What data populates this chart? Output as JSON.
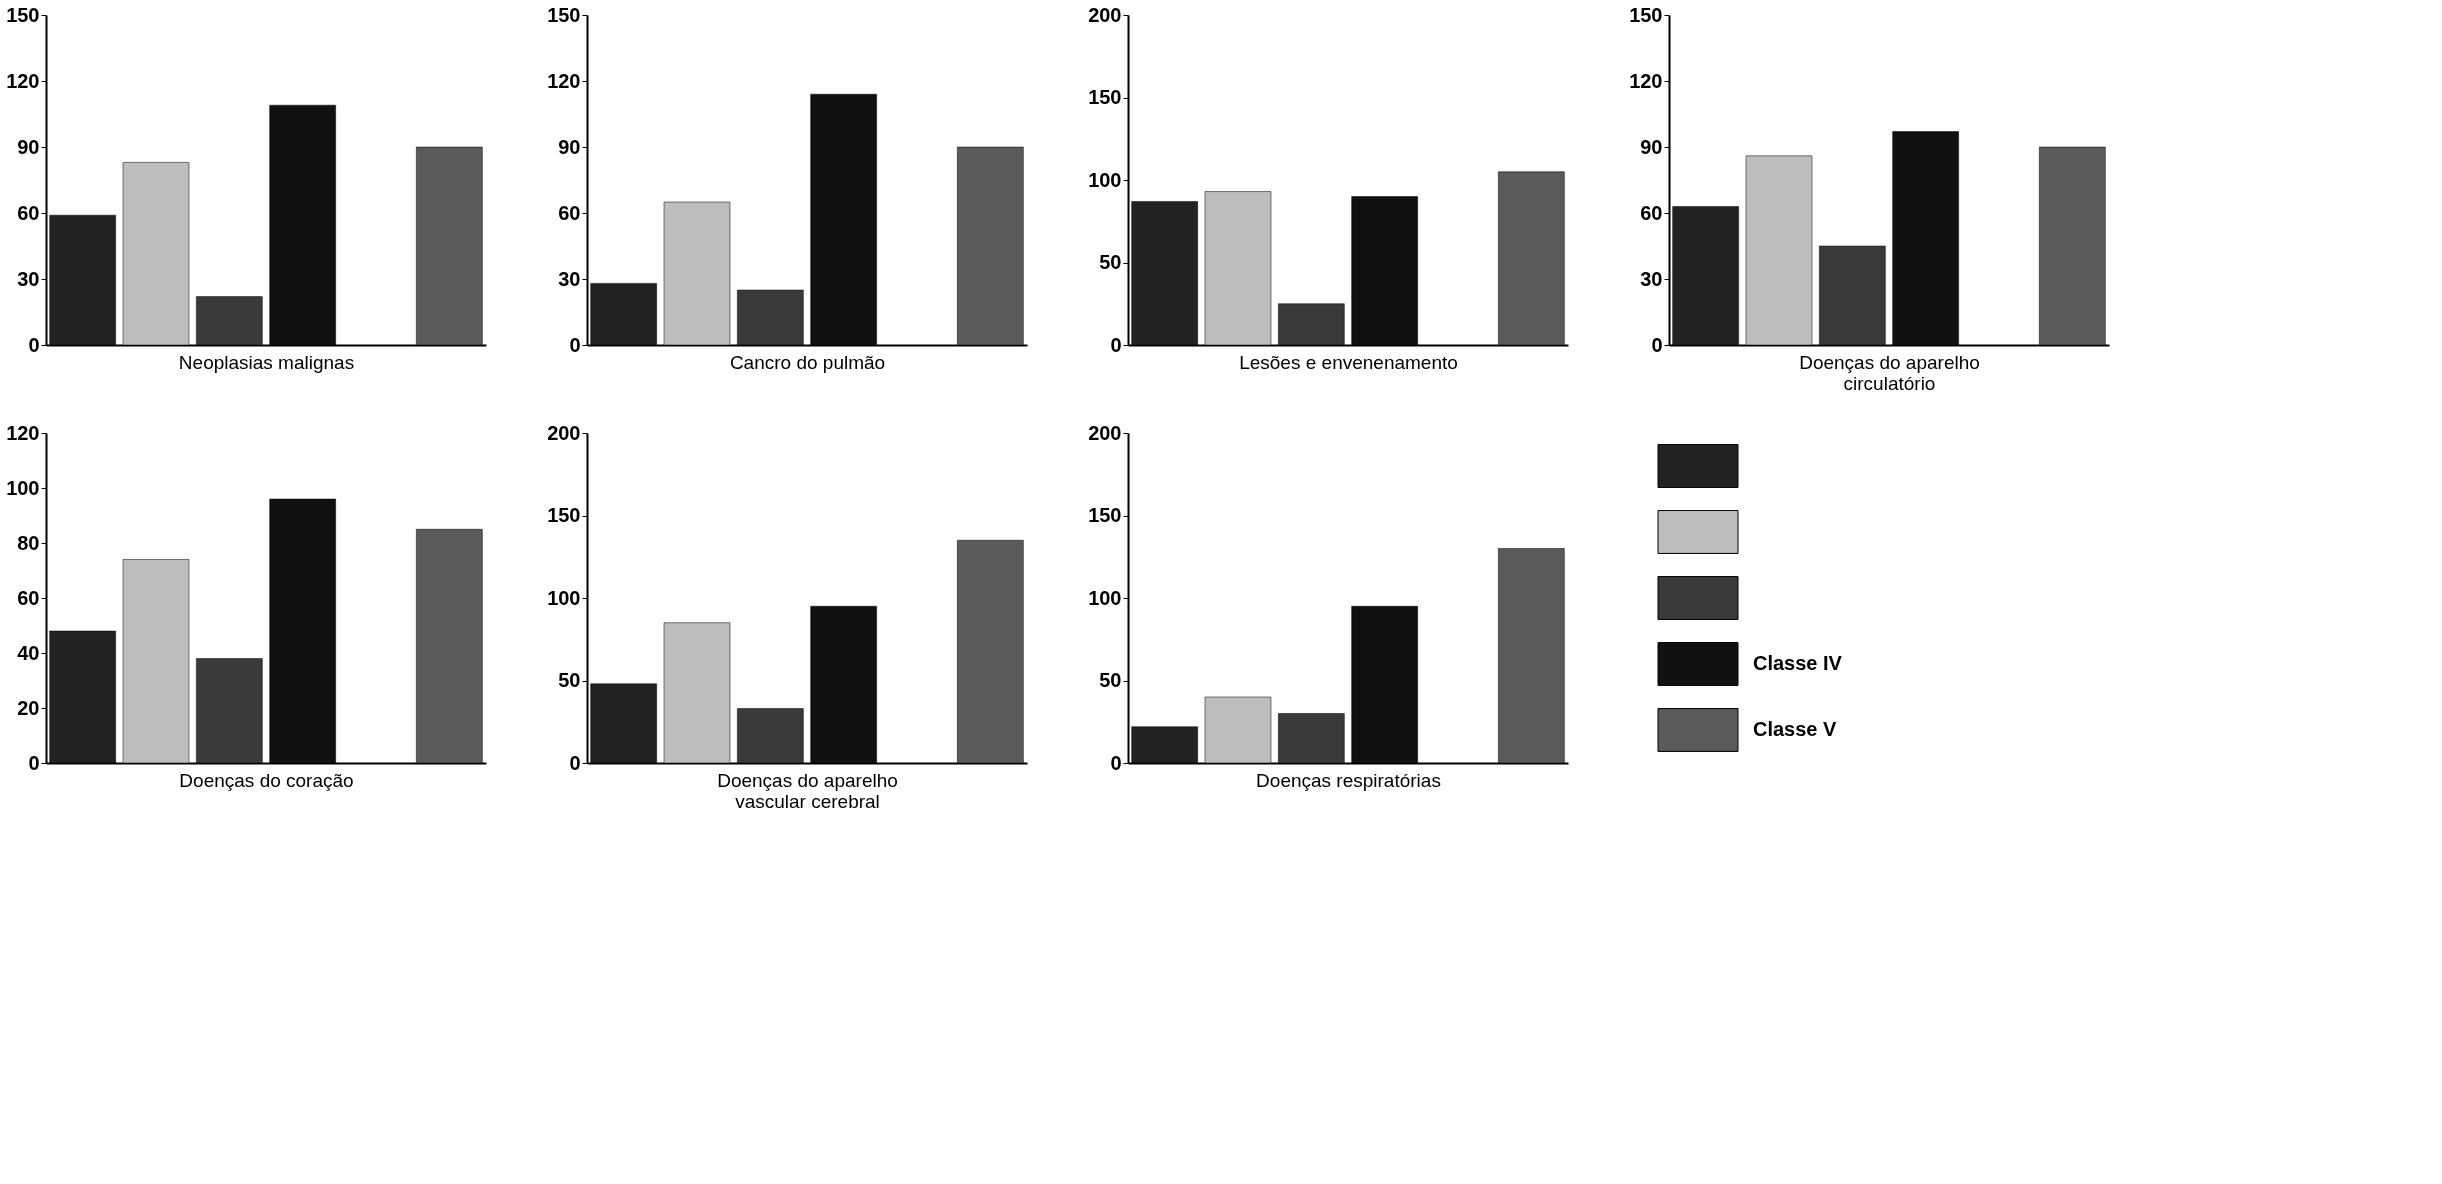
{
  "chart_data": [
    {
      "type": "bar",
      "xlabel": "Neoplasias malignas",
      "categories": [
        null,
        null,
        null,
        null,
        null,
        null
      ],
      "values": [
        59,
        83,
        22,
        109,
        null,
        90
      ],
      "colors": [
        "#222222",
        "#bdbdbd",
        "#3a3a3a",
        "#111111",
        "#ffffff",
        "#5a5a5a"
      ],
      "ylim": [
        0,
        150
      ],
      "yticks": [
        0,
        30,
        60,
        90,
        120,
        150
      ],
      "tick_labels": "y",
      "grid": false
    },
    {
      "type": "bar",
      "xlabel": "Cancro do pulmão",
      "categories": [
        null,
        null,
        null,
        null,
        null,
        null
      ],
      "values": [
        28,
        65,
        25,
        114,
        null,
        90
      ],
      "colors": [
        "#222222",
        "#bdbdbd",
        "#3a3a3a",
        "#111111",
        "#ffffff",
        "#5a5a5a"
      ],
      "ylim": [
        0,
        150
      ],
      "yticks": [
        0,
        30,
        60,
        90,
        120,
        150
      ],
      "tick_labels": "y",
      "grid": false
    },
    {
      "type": "bar",
      "xlabel": "Lesões e envenenamento",
      "categories": [
        null,
        null,
        null,
        null,
        null,
        null
      ],
      "values": [
        87,
        93,
        25,
        90,
        null,
        105
      ],
      "colors": [
        "#222222",
        "#bdbdbd",
        "#3a3a3a",
        "#111111",
        "#ffffff",
        "#5a5a5a"
      ],
      "ylim": [
        0,
        200
      ],
      "yticks": [
        0,
        50,
        100,
        150,
        200
      ],
      "tick_labels": "y",
      "grid": false
    },
    {
      "type": "bar",
      "xlabel": "Doenças do aparelho circulatório",
      "categories": [
        null,
        null,
        null,
        null,
        null,
        null
      ],
      "values": [
        63,
        86,
        45,
        97,
        null,
        90
      ],
      "colors": [
        "#222222",
        "#bdbdbd",
        "#3a3a3a",
        "#111111",
        "#ffffff",
        "#5a5a5a"
      ],
      "ylim": [
        0,
        150
      ],
      "yticks": [
        0,
        30,
        60,
        90,
        120,
        150
      ],
      "tick_labels": "y",
      "grid": false
    },
    {
      "type": "bar",
      "xlabel": "Doenças do coração",
      "categories": [
        null,
        null,
        null,
        null,
        null,
        null
      ],
      "values": [
        48,
        74,
        38,
        96,
        null,
        85
      ],
      "colors": [
        "#222222",
        "#bdbdbd",
        "#3a3a3a",
        "#111111",
        "#ffffff",
        "#5a5a5a"
      ],
      "ylim": [
        0,
        120
      ],
      "yticks": [
        0,
        20,
        40,
        60,
        80,
        100,
        120
      ],
      "tick_labels": "y",
      "grid": false
    },
    {
      "type": "bar",
      "xlabel": "Doenças do aparelho vascular cerebral",
      "categories": [
        null,
        null,
        null,
        null,
        null,
        null
      ],
      "values": [
        48,
        85,
        33,
        95,
        null,
        135
      ],
      "colors": [
        "#222222",
        "#bdbdbd",
        "#3a3a3a",
        "#111111",
        "#ffffff",
        "#5a5a5a"
      ],
      "ylim": [
        0,
        200
      ],
      "yticks": [
        0,
        50,
        100,
        150,
        200
      ],
      "tick_labels": "y",
      "grid": false
    },
    {
      "type": "bar",
      "xlabel": "Doenças respiratórias",
      "categories": [
        null,
        null,
        null,
        null,
        null,
        null
      ],
      "values": [
        22,
        40,
        30,
        95,
        null,
        130
      ],
      "colors": [
        "#222222",
        "#bdbdbd",
        "#3a3a3a",
        "#111111",
        "#ffffff",
        "#5a5a5a"
      ],
      "ylim": [
        0,
        200
      ],
      "yticks": [
        0,
        50,
        100,
        150,
        200
      ],
      "tick_labels": "y",
      "grid": false
    },
    {
      "type": "other",
      "series": [
        {
          "name": null,
          "color": "#222222"
        },
        {
          "name": null,
          "color": "#bdbdbd"
        },
        {
          "name": null,
          "color": "#3a3a3a"
        },
        {
          "name": "Classe IV",
          "color": "#111111"
        },
        {
          "name": "Classe V",
          "color": "#5a5a5a"
        }
      ]
    }
  ]
}
